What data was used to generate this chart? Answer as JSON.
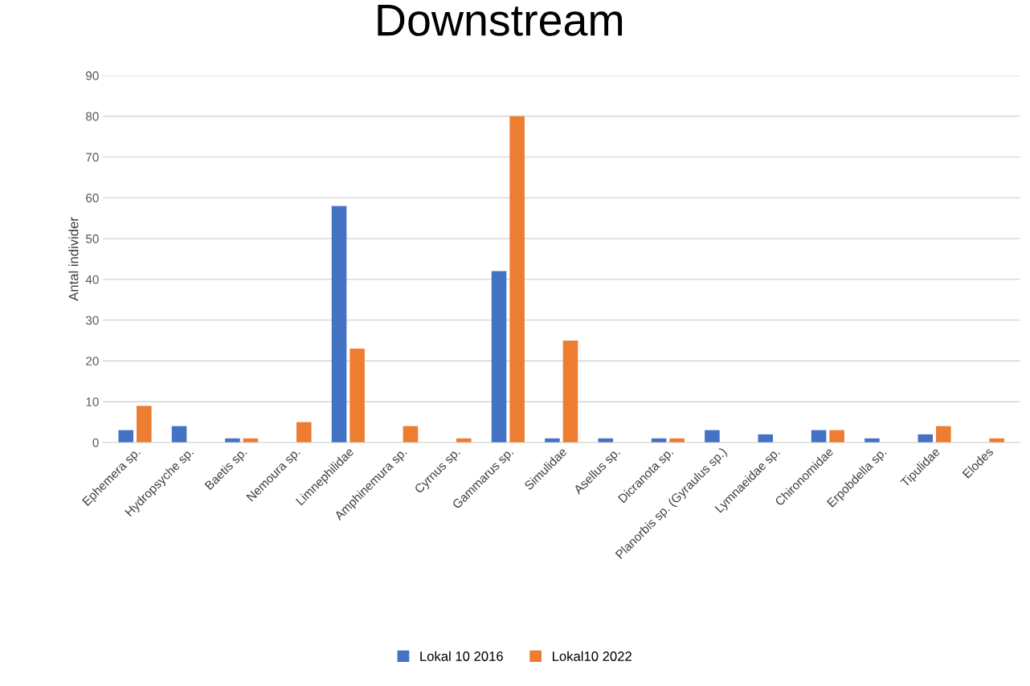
{
  "chart_data": {
    "type": "bar",
    "title": "Downstream",
    "ylabel": "Antal individer",
    "categories": [
      "Ephemera sp.",
      "Hydropsyche sp.",
      "Baetis sp.",
      "Nemoura sp.",
      "Limnephilidae",
      "Amphinemura sp.",
      "Cyrnus sp.",
      "Gammarus sp.",
      "Simulidae",
      "Asellus sp.",
      "Dicranota sp.",
      "Planorbis sp. (Gyraulus sp.)",
      "Lymnaeidae sp.",
      "Chironomidae",
      "Erpobdella sp.",
      "Tipulidae",
      "Elodes"
    ],
    "series": [
      {
        "name": "Lokal 10 2016",
        "color": "#4472c4",
        "values": [
          3,
          4,
          1,
          0,
          58,
          0,
          0,
          42,
          1,
          1,
          1,
          3,
          2,
          3,
          1,
          2,
          0
        ]
      },
      {
        "name": "Lokal10 2022",
        "color": "#ed7d31",
        "values": [
          9,
          0,
          1,
          5,
          23,
          4,
          1,
          80,
          25,
          0,
          1,
          0,
          0,
          3,
          0,
          4,
          1
        ]
      }
    ],
    "ylim": [
      0,
      90
    ],
    "yticks": [
      0,
      10,
      20,
      30,
      40,
      50,
      60,
      70,
      80,
      90
    ],
    "grid": "y",
    "legend": "bottom"
  }
}
